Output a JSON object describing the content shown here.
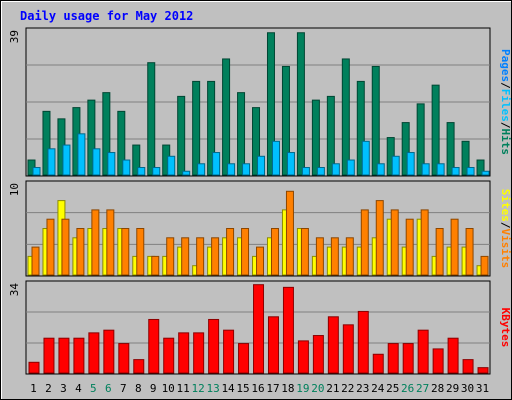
{
  "chart_data": [
    {
      "type": "bar",
      "title": "Daily usage for May 2012",
      "categories": [
        "1",
        "2",
        "3",
        "4",
        "5",
        "6",
        "7",
        "8",
        "9",
        "10",
        "11",
        "12",
        "13",
        "14",
        "15",
        "16",
        "17",
        "18",
        "19",
        "20",
        "21",
        "22",
        "23",
        "24",
        "25",
        "26",
        "27",
        "28",
        "29",
        "30",
        "31"
      ],
      "weekend_days": [
        "5",
        "6",
        "12",
        "13",
        "19",
        "20",
        "26",
        "27"
      ],
      "max_label": "39",
      "ylim": [
        0,
        39
      ],
      "grid": true,
      "legend": {
        "labels": [
          "Pages",
          "Files",
          "Hits"
        ],
        "separator": "/",
        "placement": "right"
      },
      "series": [
        {
          "name": "Hits",
          "color": "#00805C",
          "values": [
            4,
            17,
            15,
            18,
            20,
            22,
            17,
            8,
            30,
            8,
            21,
            25,
            25,
            31,
            22,
            18,
            38,
            29,
            38,
            20,
            21,
            31,
            25,
            29,
            10,
            14,
            19,
            24,
            14,
            9,
            4
          ]
        },
        {
          "name": "Files",
          "color": "#00C0FF",
          "values": [
            2,
            7,
            8,
            11,
            7,
            6,
            4,
            2,
            2,
            5,
            1,
            3,
            6,
            3,
            3,
            5,
            9,
            6,
            2,
            2,
            3,
            4,
            9,
            3,
            5,
            6,
            3,
            3,
            2,
            2,
            1
          ]
        },
        {
          "name": "Pages",
          "color": "#0080FF",
          "values": [
            0,
            0,
            0,
            0,
            0,
            0,
            0,
            0,
            0,
            0,
            0,
            0,
            0,
            0,
            0,
            0,
            0,
            0,
            0,
            0,
            0,
            0,
            0,
            0,
            0,
            0,
            0,
            0,
            0,
            0,
            0
          ]
        }
      ]
    },
    {
      "type": "bar",
      "max_label": "10",
      "ylim": [
        0,
        10
      ],
      "grid": true,
      "legend": {
        "labels": [
          "Sites",
          "Visits"
        ],
        "separator": "/",
        "placement": "right"
      },
      "series": [
        {
          "name": "Visits",
          "color": "#FF8000",
          "values": [
            3,
            6,
            6,
            5,
            7,
            7,
            5,
            5,
            2,
            4,
            4,
            4,
            4,
            5,
            5,
            3,
            5,
            9,
            5,
            4,
            4,
            4,
            7,
            8,
            7,
            6,
            7,
            5,
            6,
            5,
            2
          ]
        },
        {
          "name": "Sites",
          "color": "#FFFF00",
          "values": [
            2,
            5,
            8,
            4,
            5,
            5,
            5,
            2,
            2,
            2,
            3,
            1,
            3,
            4,
            4,
            2,
            4,
            7,
            5,
            2,
            3,
            3,
            3,
            4,
            6,
            3,
            6,
            2,
            3,
            3,
            1
          ]
        }
      ]
    },
    {
      "type": "bar",
      "max_label": "34",
      "ylim": [
        0,
        34
      ],
      "grid": true,
      "legend": {
        "labels": [
          "KBytes"
        ],
        "placement": "right"
      },
      "series": [
        {
          "name": "KBytes",
          "color": "#FF0000",
          "values": [
            4,
            13,
            13,
            13,
            15,
            16,
            11,
            5,
            20,
            13,
            15,
            15,
            20,
            16,
            11,
            33,
            21,
            32,
            12,
            14,
            21,
            18,
            23,
            7,
            11,
            11,
            16,
            9,
            13,
            5,
            2
          ]
        }
      ]
    }
  ],
  "colors": {
    "background": "#C0C0C0",
    "title": "#0000FF",
    "weekend": "#00805C",
    "weekday": "#000000",
    "grid": "#808080"
  }
}
